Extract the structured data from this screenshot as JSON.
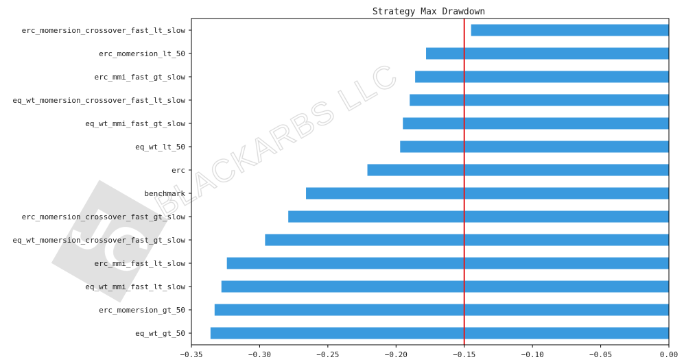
{
  "chart_data": {
    "type": "bar",
    "orientation": "horizontal",
    "title": "Strategy Max Drawdown",
    "xlabel": "",
    "ylabel": "",
    "xlim": [
      -0.35,
      0.0
    ],
    "x_ticks": [
      -0.35,
      -0.3,
      -0.25,
      -0.2,
      -0.15,
      -0.1,
      -0.05,
      0.0
    ],
    "x_tick_labels": [
      "−0.35",
      "−0.30",
      "−0.25",
      "−0.20",
      "−0.15",
      "−0.10",
      "−0.05",
      "0.00"
    ],
    "grid": false,
    "bar_color": "#3a9ade",
    "reference_line": {
      "x": -0.15,
      "color": "#e41a1c"
    },
    "categories": [
      "erc_momersion_crossover_fast_lt_slow",
      "erc_momersion_lt_50",
      "erc_mmi_fast_gt_slow",
      "eq_wt_momersion_crossover_fast_lt_slow",
      "eq_wt_mmi_fast_gt_slow",
      "eq_wt_lt_50",
      "erc",
      "benchmark",
      "erc_momersion_crossover_fast_gt_slow",
      "eq_wt_momersion_crossover_fast_gt_slow",
      "erc_mmi_fast_lt_slow",
      "eq_wt_mmi_fast_lt_slow",
      "erc_momersion_gt_50",
      "eq_wt_gt_50"
    ],
    "values": [
      -0.145,
      -0.178,
      -0.186,
      -0.19,
      -0.195,
      -0.197,
      -0.221,
      -0.266,
      -0.279,
      -0.296,
      -0.324,
      -0.328,
      -0.333,
      -0.336
    ]
  },
  "watermark": {
    "text": "BLACKARBS LLC",
    "logo": "JC"
  }
}
